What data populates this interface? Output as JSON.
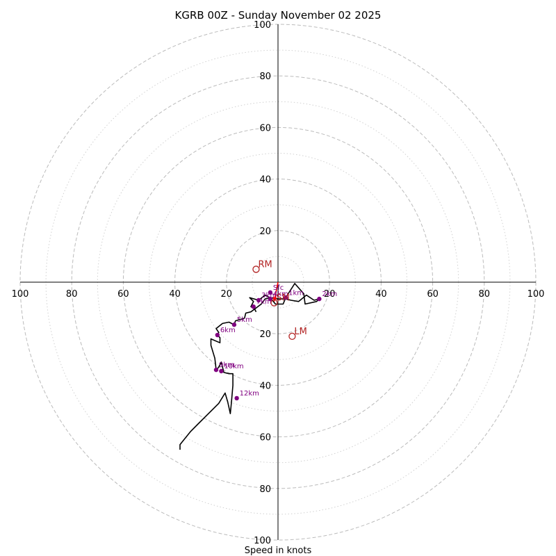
{
  "chart_data": {
    "type": "hodograph",
    "title": "KGRB 00Z - Sunday November 02 2025",
    "xlabel": "Speed in knots",
    "units": "knots",
    "range": [
      -100,
      100
    ],
    "ring_major": [
      20,
      40,
      60,
      80,
      100
    ],
    "ring_minor": [
      10,
      30,
      50,
      70,
      90
    ],
    "axis_ticks": [
      20,
      40,
      60,
      80,
      100
    ],
    "colors": {
      "hodo_line": "#000000",
      "height_marker": "#800080",
      "storm_marker": "#b22222",
      "shear_arrow": "#ff0000",
      "ring_major": "#bbbbbb",
      "ring_minor": "#d0d0d0"
    },
    "hodograph": [
      {
        "u": -8.5,
        "v": -11.5
      },
      {
        "u": -9,
        "v": -10.5
      },
      {
        "u": -10.5,
        "v": -9.5
      },
      {
        "u": -9.5,
        "v": -7.5
      },
      {
        "u": -11,
        "v": -6
      },
      {
        "u": -7.5,
        "v": -7
      },
      {
        "u": -5,
        "v": -5
      },
      {
        "u": -3,
        "v": -6
      },
      {
        "u": -1,
        "v": -8.5
      },
      {
        "u": 2,
        "v": -8.5
      },
      {
        "u": 3,
        "v": -6
      },
      {
        "u": 6.5,
        "v": -0.5
      },
      {
        "u": 10,
        "v": -4.5
      },
      {
        "u": 10.5,
        "v": -8.5
      },
      {
        "u": 15,
        "v": -7.5
      },
      {
        "u": 16,
        "v": -6.5
      },
      {
        "u": 14,
        "v": -7
      },
      {
        "u": 11,
        "v": -5
      },
      {
        "u": 8,
        "v": -7.5
      },
      {
        "u": 5,
        "v": -7
      },
      {
        "u": 3,
        "v": -6.5
      },
      {
        "u": 0,
        "v": -6.5
      },
      {
        "u": -3,
        "v": -6
      },
      {
        "u": -5,
        "v": -6.5
      },
      {
        "u": -6.5,
        "v": -8.5
      },
      {
        "u": -8.5,
        "v": -10
      },
      {
        "u": -10.5,
        "v": -11.5
      },
      {
        "u": -12.5,
        "v": -12
      },
      {
        "u": -13,
        "v": -14
      },
      {
        "u": -16.5,
        "v": -15
      },
      {
        "u": -17,
        "v": -16.5
      },
      {
        "u": -19,
        "v": -15.5
      },
      {
        "u": -21.5,
        "v": -16
      },
      {
        "u": -24,
        "v": -18
      },
      {
        "u": -23,
        "v": -19.5
      },
      {
        "u": -23.5,
        "v": -20.5
      },
      {
        "u": -22.5,
        "v": -21.5
      },
      {
        "u": -22.5,
        "v": -23.5
      },
      {
        "u": -26,
        "v": -22
      },
      {
        "u": -26,
        "v": -24.5
      },
      {
        "u": -24.5,
        "v": -29.5
      },
      {
        "u": -24,
        "v": -34
      },
      {
        "u": -23,
        "v": -33
      },
      {
        "u": -22,
        "v": -31
      },
      {
        "u": -21,
        "v": -35
      },
      {
        "u": -19,
        "v": -35.5
      },
      {
        "u": -17.5,
        "v": -35.5
      },
      {
        "u": -17.5,
        "v": -40
      },
      {
        "u": -18,
        "v": -46
      },
      {
        "u": -18.5,
        "v": -51
      },
      {
        "u": -19.5,
        "v": -46.5
      },
      {
        "u": -20.5,
        "v": -43
      },
      {
        "u": -23,
        "v": -47
      },
      {
        "u": -25,
        "v": -49
      },
      {
        "u": -28,
        "v": -52
      },
      {
        "u": -31,
        "v": -55
      },
      {
        "u": -34,
        "v": -58
      },
      {
        "u": -38,
        "v": -63
      },
      {
        "u": -38,
        "v": -65
      }
    ],
    "height_markers": [
      {
        "label": "Sfc",
        "u": -3,
        "v": -4
      },
      {
        "label": "1km",
        "u": 3,
        "v": -6
      },
      {
        "label": "2km",
        "u": 16,
        "v": -6.5
      },
      {
        "label": "3km",
        "u": -7.5,
        "v": -7
      },
      {
        "label": "4km",
        "u": -3,
        "v": -6.5
      },
      {
        "label": "5km",
        "u": -17,
        "v": -16.5
      },
      {
        "label": "6km",
        "u": -23.5,
        "v": -20.5
      },
      {
        "label": "7km",
        "u": -9.5,
        "v": -9.5
      },
      {
        "label": "9km",
        "u": -24,
        "v": -34
      },
      {
        "label": "10km",
        "u": -22,
        "v": -34.5
      },
      {
        "label": "12km",
        "u": -16,
        "v": -45
      }
    ],
    "storm_motions": [
      {
        "label": "RM",
        "u": -8.5,
        "v": 5
      },
      {
        "label": "LM",
        "u": 5.5,
        "v": -21
      },
      {
        "label": "SM",
        "u": -1.5,
        "v": -8
      }
    ],
    "shear_arrows": [
      {
        "u0": 0,
        "v0": 0,
        "u1": -1.5,
        "v1": -7.5
      }
    ]
  }
}
